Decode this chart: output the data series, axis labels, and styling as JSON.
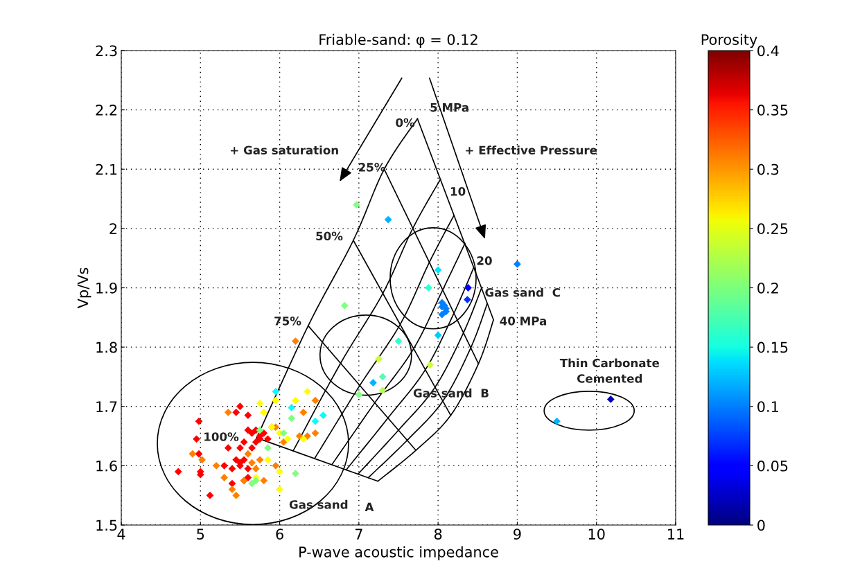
{
  "chart_data": {
    "type": "scatter",
    "title": "Friable-sand: φ = 0.12",
    "xlabel": "P-wave acoustic impedance",
    "ylabel": "Vp/Vs",
    "clabel": "Porosity",
    "xlim": [
      4,
      11
    ],
    "xticks": [
      4,
      5,
      6,
      7,
      8,
      9,
      10,
      11
    ],
    "ylim": [
      1.5,
      2.3
    ],
    "yticks": [
      1.5,
      1.6,
      1.7,
      1.8,
      1.9,
      2,
      2.1,
      2.2,
      2.3
    ],
    "clim": [
      0,
      0.4
    ],
    "cticks": [
      0,
      0.05,
      0.1,
      0.15,
      0.2,
      0.25,
      0.3,
      0.35,
      0.4
    ],
    "grid": true,
    "legend": false,
    "series": [
      {
        "marker": "diamond",
        "x": [
          4.72,
          4.98,
          4.95,
          4.98,
          5.0,
          5.0,
          5.12,
          5.3,
          5.5,
          5.45,
          5.6,
          5.6,
          5.65,
          5.7,
          5.75,
          5.55,
          5.5,
          5.35,
          5.45,
          5.5,
          5.55,
          5.4,
          5.6,
          5.7,
          5.8,
          5.75,
          5.6,
          5.85,
          5.5,
          5.65,
          5.4,
          5.55,
          4.9,
          5.02,
          5.2,
          5.3,
          5.4,
          5.45,
          5.55,
          5.6,
          5.75,
          5.65,
          5.9,
          5.95,
          6.05,
          5.95,
          6.25,
          6.35,
          6.45,
          6.3,
          5.35,
          5.8,
          5.7,
          6.45,
          5.75,
          5.8,
          5.9,
          6.0,
          6.1,
          6.2,
          6.35,
          5.85,
          6.0,
          5.7,
          6.0,
          6.3,
          5.95,
          5.75,
          5.85,
          6.05,
          5.65,
          5.7,
          6.15,
          6.2,
          5.95,
          6.15,
          6.45,
          6.55,
          6.97,
          7.37,
          6.82,
          6.2,
          7.5,
          7.25,
          7.18,
          7.3,
          7.3,
          7.0,
          7.9,
          7.88,
          8.0,
          8.05,
          8.05,
          8.08,
          8.1,
          8.05,
          8.1,
          8.0,
          8.38,
          8.37,
          9.0,
          9.5,
          10.18
        ],
        "values": [
          1.59,
          1.675,
          1.645,
          1.62,
          1.59,
          1.585,
          1.55,
          1.6,
          1.7,
          1.69,
          1.685,
          1.66,
          1.655,
          1.66,
          1.65,
          1.64,
          1.63,
          1.63,
          1.61,
          1.6,
          1.61,
          1.57,
          1.58,
          1.64,
          1.655,
          1.645,
          1.595,
          1.645,
          1.605,
          1.63,
          1.595,
          1.575,
          1.62,
          1.61,
          1.6,
          1.58,
          1.56,
          1.55,
          1.575,
          1.62,
          1.61,
          1.605,
          1.665,
          1.665,
          1.64,
          1.6,
          1.65,
          1.65,
          1.71,
          1.69,
          1.69,
          1.575,
          1.595,
          1.655,
          1.705,
          1.69,
          1.665,
          1.655,
          1.645,
          1.71,
          1.725,
          1.61,
          1.59,
          1.58,
          1.56,
          1.645,
          1.71,
          1.66,
          1.63,
          1.655,
          1.57,
          1.575,
          1.68,
          1.587,
          1.725,
          1.698,
          1.675,
          1.685,
          2.04,
          2.015,
          1.87,
          1.81,
          1.81,
          1.78,
          1.74,
          1.75,
          1.727,
          1.72,
          1.77,
          1.9,
          1.93,
          1.875,
          1.868,
          1.87,
          1.865,
          1.855,
          1.86,
          1.82,
          1.9,
          1.88,
          1.94,
          1.675,
          1.712
        ],
        "colors": [
          "#ff0000",
          "#ff0000",
          "#ff0000",
          "#ff0000",
          "#ff0000",
          "#ff0000",
          "#ff0000",
          "#ff0000",
          "#ff0000",
          "#ff0000",
          "#ff0000",
          "#ff0000",
          "#ff0000",
          "#ff0000",
          "#ff0000",
          "#ff0000",
          "#ff0000",
          "#ff0000",
          "#ff0000",
          "#ff0000",
          "#ff0000",
          "#ff0000",
          "#ff0000",
          "#ff0000",
          "#ff0000",
          "#ff0000",
          "#ff0000",
          "#ff0000",
          "#ff0000",
          "#ff0000",
          "#ff0000",
          "#ff0000",
          "#ff8000",
          "#ff8000",
          "#ff8000",
          "#ff8000",
          "#ff8000",
          "#ff8000",
          "#ff8000",
          "#ff8000",
          "#ff8000",
          "#ff8000",
          "#ff8000",
          "#ff8000",
          "#ff8000",
          "#ff8000",
          "#ff8000",
          "#ff8000",
          "#ff8000",
          "#ff8000",
          "#ff8000",
          "#ff8000",
          "#ff8000",
          "#ff8000",
          "#ffff00",
          "#ffff00",
          "#ffff00",
          "#ffff00",
          "#ffff00",
          "#ffff00",
          "#ffff00",
          "#ffff00",
          "#ffff00",
          "#ffff00",
          "#ffff00",
          "#ffff00",
          "#ffff00",
          "#80ff80",
          "#80ff80",
          "#80ff80",
          "#80ff80",
          "#80ff80",
          "#80ff80",
          "#80ff80",
          "#00ffff",
          "#00ffff",
          "#00ffff",
          "#00ffff",
          "#80ff80",
          "#00b3ff",
          "#80ff80",
          "#ff8000",
          "#33ffcc",
          "#ccff33",
          "#00b3ff",
          "#4dffb3",
          "#b3ff4d",
          "#80ff80",
          "#ccff33",
          "#33ffcc",
          "#00e6ff",
          "#0080ff",
          "#0080ff",
          "#0080ff",
          "#0080ff",
          "#0080ff",
          "#0080ff",
          "#00ccff",
          "#0000ff",
          "#0033ff",
          "#0080ff",
          "#00b3ff",
          "#0000b3"
        ]
      },
      {
        "type": "line",
        "color": "#000000",
        "marker": "none",
        "x": [
          7.74,
          7.32,
          6.93,
          6.36,
          5.71
        ],
        "values": [
          2.185,
          2.1,
          1.98,
          1.836,
          1.647
        ]
      },
      {
        "type": "line",
        "color": "#000000",
        "marker": "none",
        "x": [
          8.03,
          7.68,
          7.3,
          6.77,
          6.17
        ],
        "values": [
          2.083,
          2.0,
          1.89,
          1.773,
          1.625
        ]
      },
      {
        "type": "line",
        "color": "#000000",
        "marker": "none",
        "x": [
          8.2,
          7.89,
          7.52,
          7.01,
          6.44
        ],
        "values": [
          2.022,
          1.943,
          1.838,
          1.735,
          1.612
        ]
      },
      {
        "type": "line",
        "color": "#000000",
        "marker": "none",
        "x": [
          8.34,
          8.06,
          7.69,
          7.2,
          6.66
        ],
        "values": [
          1.975,
          1.897,
          1.797,
          1.706,
          1.602
        ]
      },
      {
        "type": "line",
        "color": "#000000",
        "marker": "none",
        "x": [
          8.45,
          8.2,
          7.84,
          7.37,
          6.84
        ],
        "values": [
          1.934,
          1.857,
          1.762,
          1.681,
          1.593
        ]
      },
      {
        "type": "line",
        "color": "#000000",
        "marker": "none",
        "x": [
          8.55,
          8.32,
          7.96,
          7.5,
          6.99
        ],
        "values": [
          1.9,
          1.824,
          1.732,
          1.66,
          1.586
        ]
      },
      {
        "type": "line",
        "color": "#000000",
        "marker": "none",
        "x": [
          8.62,
          8.41,
          8.06,
          7.61,
          7.12
        ],
        "values": [
          1.873,
          1.798,
          1.709,
          1.643,
          1.58
        ]
      },
      {
        "type": "line",
        "color": "#000000",
        "marker": "none",
        "x": [
          8.7,
          8.51,
          8.16,
          7.72,
          7.24
        ],
        "values": [
          1.846,
          1.772,
          1.685,
          1.626,
          1.574
        ]
      },
      {
        "type": "line",
        "color": "#000000",
        "marker": "none",
        "x": [
          7.74,
          8.7
        ],
        "values": [
          2.185,
          1.846
        ]
      },
      {
        "type": "line",
        "color": "#000000",
        "marker": "none",
        "x": [
          7.32,
          8.51
        ],
        "values": [
          2.1,
          1.772
        ]
      },
      {
        "type": "line",
        "color": "#000000",
        "marker": "none",
        "x": [
          6.93,
          8.16
        ],
        "values": [
          1.98,
          1.685
        ]
      },
      {
        "type": "line",
        "color": "#000000",
        "marker": "none",
        "x": [
          6.36,
          7.72
        ],
        "values": [
          1.836,
          1.626
        ]
      },
      {
        "type": "line",
        "color": "#000000",
        "marker": "none",
        "x": [
          5.71,
          7.24
        ],
        "values": [
          1.647,
          1.574
        ]
      }
    ],
    "annotations": [
      "5 MPa",
      "0%",
      "25%",
      "50%",
      "75%",
      "100%",
      "10",
      "20",
      "40 MPa",
      "+ Gas saturation",
      "+ Effective Pressure",
      "Gas sand  C",
      "Gas sand  B",
      "Gas sand",
      "A",
      "Thin Carbonate\nCemented"
    ]
  }
}
